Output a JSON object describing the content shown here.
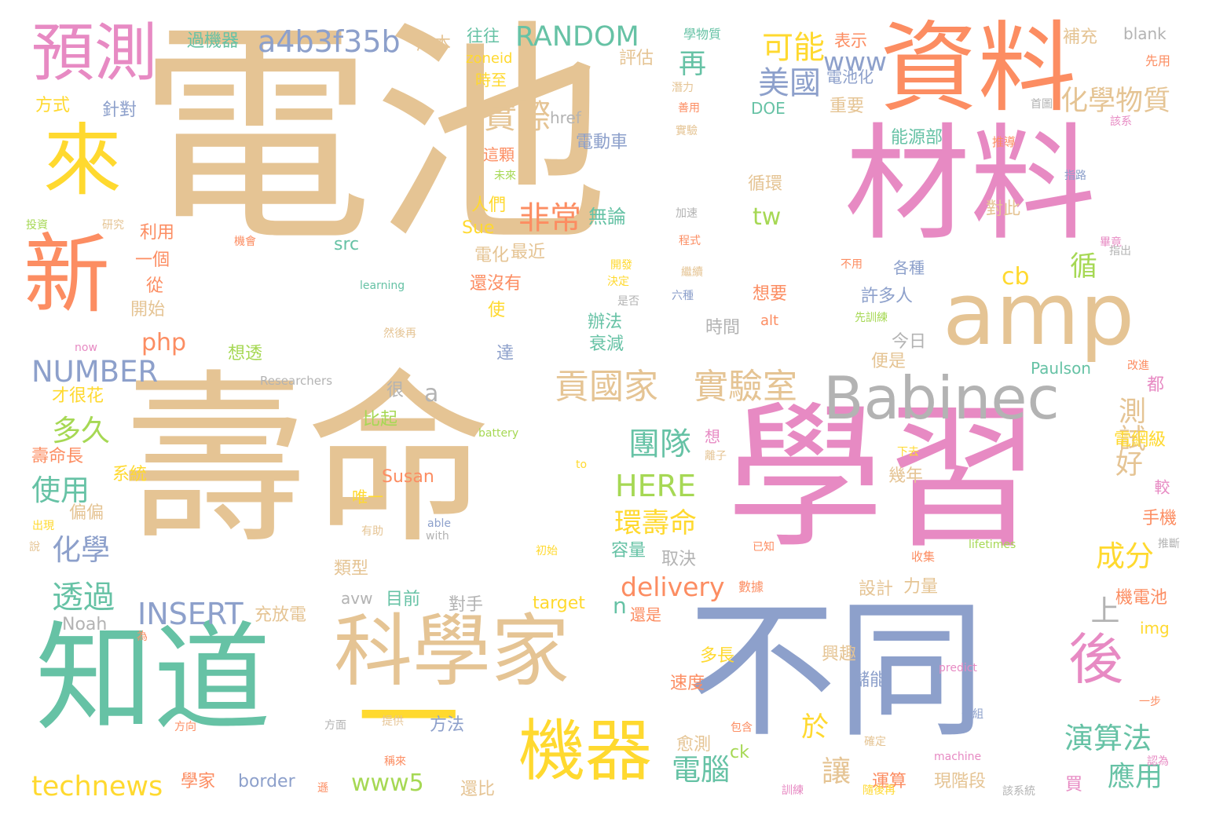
{
  "palette": {
    "tan": "#E5C494",
    "pink": "#E78AC3",
    "green": "#66C2A5",
    "blue": "#8DA0CB",
    "orange": "#FC8D62",
    "yellow": "#FFD92F",
    "lime": "#A6D854",
    "gray": "#B3B3B3"
  },
  "words": [
    {
      "text": "電池",
      "color": "#E5C494"
    },
    {
      "text": "壽命",
      "color": "#E5C494"
    },
    {
      "text": "學習",
      "color": "#E78AC3"
    },
    {
      "text": "材料",
      "color": "#E78AC3"
    },
    {
      "text": "資料",
      "color": "#FC8D62"
    },
    {
      "text": "不同",
      "color": "#8DA0CB"
    },
    {
      "text": "知道",
      "color": "#66C2A5"
    },
    {
      "text": "科學家",
      "color": "#E5C494"
    },
    {
      "text": "amp",
      "color": "#E5C494"
    },
    {
      "text": "Babinec",
      "color": "#B3B3B3"
    },
    {
      "text": "預測",
      "color": "#E78AC3"
    },
    {
      "text": "來",
      "color": "#FFD92F"
    },
    {
      "text": "新",
      "color": "#FC8D62"
    },
    {
      "text": "機器",
      "color": "#FFD92F"
    },
    {
      "text": "一",
      "color": "#FFD92F"
    },
    {
      "text": "後",
      "color": "#E78AC3"
    },
    {
      "text": "a4b3f35b",
      "color": "#8DA0CB"
    },
    {
      "text": "RANDOM",
      "color": "#66C2A5"
    },
    {
      "text": "貢國家",
      "color": "#E5C494"
    },
    {
      "text": "實驗室",
      "color": "#E5C494"
    },
    {
      "text": "可能",
      "color": "#FFD92F"
    },
    {
      "text": "美國",
      "color": "#8DA0CB"
    },
    {
      "text": "www",
      "color": "#8DA0CB"
    },
    {
      "text": "化學物質",
      "color": "#E5C494"
    },
    {
      "text": "實際",
      "color": "#E5C494"
    },
    {
      "text": "再",
      "color": "#66C2A5"
    },
    {
      "text": "非常",
      "color": "#FC8D62"
    },
    {
      "text": "tw",
      "color": "#A6D854"
    },
    {
      "text": "cb",
      "color": "#FFD92F"
    },
    {
      "text": "循",
      "color": "#A6D854"
    },
    {
      "text": "php",
      "color": "#FC8D62"
    },
    {
      "text": "NUMBER",
      "color": "#8DA0CB"
    },
    {
      "text": "a",
      "color": "#B3B3B3"
    },
    {
      "text": "多久",
      "color": "#A6D854"
    },
    {
      "text": "使用",
      "color": "#66C2A5"
    },
    {
      "text": "化學",
      "color": "#8DA0CB"
    },
    {
      "text": "透過",
      "color": "#66C2A5"
    },
    {
      "text": "INSERT",
      "color": "#8DA0CB"
    },
    {
      "text": "團隊",
      "color": "#66C2A5"
    },
    {
      "text": "HERE",
      "color": "#A6D854"
    },
    {
      "text": "環壽命",
      "color": "#FFD92F"
    },
    {
      "text": "delivery",
      "color": "#FC8D62"
    },
    {
      "text": "測試",
      "color": "#E5C494"
    },
    {
      "text": "好",
      "color": "#E5C494"
    },
    {
      "text": "成分",
      "color": "#FFD92F"
    },
    {
      "text": "technews",
      "color": "#FFD92F"
    },
    {
      "text": "www5",
      "color": "#A6D854"
    },
    {
      "text": "演算法",
      "color": "#66C2A5"
    },
    {
      "text": "應用",
      "color": "#66C2A5"
    },
    {
      "text": "電腦",
      "color": "#66C2A5"
    },
    {
      "text": "於",
      "color": "#FFD92F"
    },
    {
      "text": "讓",
      "color": "#E5C494"
    },
    {
      "text": "n",
      "color": "#66C2A5"
    },
    {
      "text": "上",
      "color": "#B3B3B3"
    },
    {
      "text": "過機器",
      "color": "#66C2A5"
    },
    {
      "text": "成本",
      "color": "#E5C494"
    },
    {
      "text": "往往",
      "color": "#66C2A5"
    },
    {
      "text": "學物質",
      "color": "#66C2A5"
    },
    {
      "text": "表示",
      "color": "#FC8D62"
    },
    {
      "text": "補充",
      "color": "#E5C494"
    },
    {
      "text": "blank",
      "color": "#B3B3B3"
    },
    {
      "text": "zoneid",
      "color": "#FFD92F"
    },
    {
      "text": "評估",
      "color": "#E5C494"
    },
    {
      "text": "電池化",
      "color": "#8DA0CB"
    },
    {
      "text": "先用",
      "color": "#FC8D62"
    },
    {
      "text": "時至",
      "color": "#FFD92F"
    },
    {
      "text": "潛力",
      "color": "#E5C494"
    },
    {
      "text": "方式",
      "color": "#FFD92F"
    },
    {
      "text": "針對",
      "color": "#8DA0CB"
    },
    {
      "text": "href",
      "color": "#B3B3B3"
    },
    {
      "text": "DOE",
      "color": "#66C2A5"
    },
    {
      "text": "重要",
      "color": "#E5C494"
    },
    {
      "text": "首圖",
      "color": "#B3B3B3"
    },
    {
      "text": "該系",
      "color": "#E78AC3"
    },
    {
      "text": "善用",
      "color": "#FC8D62"
    },
    {
      "text": "實驗",
      "color": "#E5C494"
    },
    {
      "text": "電動車",
      "color": "#8DA0CB"
    },
    {
      "text": "能源部",
      "color": "#66C2A5"
    },
    {
      "text": "推導",
      "color": "#FC8D62"
    },
    {
      "text": "這顆",
      "color": "#FC8D62"
    },
    {
      "text": "未來",
      "color": "#A6D854"
    },
    {
      "text": "指路",
      "color": "#8DA0CB"
    },
    {
      "text": "循環",
      "color": "#E5C494"
    },
    {
      "text": "人們",
      "color": "#FFD92F"
    },
    {
      "text": "無論",
      "color": "#66C2A5"
    },
    {
      "text": "對此",
      "color": "#E5C494"
    },
    {
      "text": "投資",
      "color": "#A6D854"
    },
    {
      "text": "研究",
      "color": "#E5C494"
    },
    {
      "text": "利用",
      "color": "#FC8D62"
    },
    {
      "text": "Sue",
      "color": "#FFD92F"
    },
    {
      "text": "加速",
      "color": "#B3B3B3"
    },
    {
      "text": "程式",
      "color": "#FC8D62"
    },
    {
      "text": "畢竟",
      "color": "#E78AC3"
    },
    {
      "text": "指出",
      "color": "#B3B3B3"
    },
    {
      "text": "機會",
      "color": "#FC8D62"
    },
    {
      "text": "src",
      "color": "#66C2A5"
    },
    {
      "text": "一個",
      "color": "#FC8D62"
    },
    {
      "text": "電化",
      "color": "#E5C494"
    },
    {
      "text": "最近",
      "color": "#E5C494"
    },
    {
      "text": "開發",
      "color": "#FFD92F"
    },
    {
      "text": "繼續",
      "color": "#E5C494"
    },
    {
      "text": "不用",
      "color": "#FC8D62"
    },
    {
      "text": "各種",
      "color": "#8DA0CB"
    },
    {
      "text": "從",
      "color": "#FC8D62"
    },
    {
      "text": "決定",
      "color": "#FFD92F"
    },
    {
      "text": "learning",
      "color": "#66C2A5"
    },
    {
      "text": "還沒有",
      "color": "#FC8D62"
    },
    {
      "text": "是否",
      "color": "#B3B3B3"
    },
    {
      "text": "六種",
      "color": "#8DA0CB"
    },
    {
      "text": "想要",
      "color": "#FC8D62"
    },
    {
      "text": "許多人",
      "color": "#8DA0CB"
    },
    {
      "text": "開始",
      "color": "#E5C494"
    },
    {
      "text": "使",
      "color": "#FFD92F"
    },
    {
      "text": "時間",
      "color": "#B3B3B3"
    },
    {
      "text": "alt",
      "color": "#FC8D62"
    },
    {
      "text": "先訓練",
      "color": "#A6D854"
    },
    {
      "text": "辦法",
      "color": "#66C2A5"
    },
    {
      "text": "衰減",
      "color": "#66C2A5"
    },
    {
      "text": "今日",
      "color": "#B3B3B3"
    },
    {
      "text": "now",
      "color": "#E78AC3"
    },
    {
      "text": "然後再",
      "color": "#E5C494"
    },
    {
      "text": "想透",
      "color": "#A6D854"
    },
    {
      "text": "便是",
      "color": "#E5C494"
    },
    {
      "text": "達",
      "color": "#8DA0CB"
    },
    {
      "text": "Paulson",
      "color": "#66C2A5"
    },
    {
      "text": "改進",
      "color": "#FC8D62"
    },
    {
      "text": "都",
      "color": "#E78AC3"
    },
    {
      "text": "才很花",
      "color": "#FFD92F"
    },
    {
      "text": "Researchers",
      "color": "#B3B3B3"
    },
    {
      "text": "很",
      "color": "#B3B3B3"
    },
    {
      "text": "比起",
      "color": "#A6D854"
    },
    {
      "text": "battery",
      "color": "#A6D854"
    },
    {
      "text": "想",
      "color": "#E78AC3"
    },
    {
      "text": "電網級",
      "color": "#FFD92F"
    },
    {
      "text": "壽命長",
      "color": "#FC8D62"
    },
    {
      "text": "系統",
      "color": "#FFD92F"
    },
    {
      "text": "離子",
      "color": "#E5C494"
    },
    {
      "text": "下去",
      "color": "#FFD92F"
    },
    {
      "text": "Susan",
      "color": "#FC8D62"
    },
    {
      "text": "幾年",
      "color": "#E5C494"
    },
    {
      "text": "to",
      "color": "#FFD92F"
    },
    {
      "text": "較",
      "color": "#E78AC3"
    },
    {
      "text": "偏偏",
      "color": "#E5C494"
    },
    {
      "text": "唯一",
      "color": "#FFD92F"
    },
    {
      "text": "出現",
      "color": "#FFD92F"
    },
    {
      "text": "able",
      "color": "#8DA0CB"
    },
    {
      "text": "with",
      "color": "#B3B3B3"
    },
    {
      "text": "手機",
      "color": "#FC8D62"
    },
    {
      "text": "說",
      "color": "#E5C494"
    },
    {
      "text": "有助",
      "color": "#E5C494"
    },
    {
      "text": "初始",
      "color": "#FFD92F"
    },
    {
      "text": "lifetimes",
      "color": "#A6D854"
    },
    {
      "text": "已知",
      "color": "#FC8D62"
    },
    {
      "text": "推斷",
      "color": "#B3B3B3"
    },
    {
      "text": "類型",
      "color": "#E5C494"
    },
    {
      "text": "容量",
      "color": "#66C2A5"
    },
    {
      "text": "取決",
      "color": "#B3B3B3"
    },
    {
      "text": "收集",
      "color": "#FC8D62"
    },
    {
      "text": "avw",
      "color": "#B3B3B3"
    },
    {
      "text": "目前",
      "color": "#66C2A5"
    },
    {
      "text": "對手",
      "color": "#B3B3B3"
    },
    {
      "text": "target",
      "color": "#FFD92F"
    },
    {
      "text": "數據",
      "color": "#FC8D62"
    },
    {
      "text": "設計",
      "color": "#E5C494"
    },
    {
      "text": "力量",
      "color": "#E5C494"
    },
    {
      "text": "機電池",
      "color": "#FC8D62"
    },
    {
      "text": "Noah",
      "color": "#B3B3B3"
    },
    {
      "text": "充放電",
      "color": "#E5C494"
    },
    {
      "text": "還是",
      "color": "#FC8D62"
    },
    {
      "text": "img",
      "color": "#FFD92F"
    },
    {
      "text": "為",
      "color": "#FC8D62"
    },
    {
      "text": "多長",
      "color": "#FFD92F"
    },
    {
      "text": "興趣",
      "color": "#E5C494"
    },
    {
      "text": "predict",
      "color": "#E78AC3"
    },
    {
      "text": "速度",
      "color": "#FC8D62"
    },
    {
      "text": "儲能",
      "color": "#8DA0CB"
    },
    {
      "text": "一步",
      "color": "#FC8D62"
    },
    {
      "text": "方向",
      "color": "#FC8D62"
    },
    {
      "text": "方面",
      "color": "#B3B3B3"
    },
    {
      "text": "提供",
      "color": "#E5C494"
    },
    {
      "text": "方法",
      "color": "#8DA0CB"
    },
    {
      "text": "包含",
      "color": "#FC8D62"
    },
    {
      "text": "一組",
      "color": "#8DA0CB"
    },
    {
      "text": "愈測",
      "color": "#E5C494"
    },
    {
      "text": "確定",
      "color": "#E5C494"
    },
    {
      "text": "ck",
      "color": "#A6D854"
    },
    {
      "text": "稱來",
      "color": "#FC8D62"
    },
    {
      "text": "machine",
      "color": "#E78AC3"
    },
    {
      "text": "認為",
      "color": "#E78AC3"
    },
    {
      "text": "學家",
      "color": "#FC8D62"
    },
    {
      "text": "border",
      "color": "#8DA0CB"
    },
    {
      "text": "運算",
      "color": "#FC8D62"
    },
    {
      "text": "現階段",
      "color": "#E5C494"
    },
    {
      "text": "買",
      "color": "#E78AC3"
    },
    {
      "text": "還比",
      "color": "#E5C494"
    },
    {
      "text": "遜",
      "color": "#FC8D62"
    },
    {
      "text": "訓練",
      "color": "#E78AC3"
    },
    {
      "text": "隨後再",
      "color": "#FFD92F"
    },
    {
      "text": "該系統",
      "color": "#B3B3B3"
    }
  ]
}
